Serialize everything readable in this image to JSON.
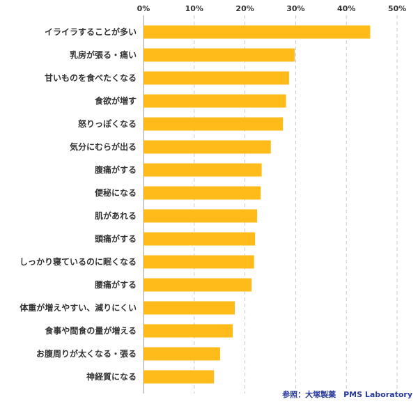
{
  "chart_data": {
    "type": "bar",
    "orientation": "horizontal",
    "categories": [
      "イライラすることが多い",
      "乳房が張る・痛い",
      "甘いものを食べたくなる",
      "食欲が増す",
      "怒りっぽくなる",
      "気分にむらが出る",
      "腹痛がする",
      "便秘になる",
      "肌があれる",
      "頭痛がする",
      "しっかり寝ているのに眠くなる",
      "腰痛がする",
      "体重が増えやすい、減りにくい",
      "食事や間食の量が増える",
      "お腹周りが太くなる・張る",
      "神経質になる"
    ],
    "values": [
      44.7,
      29.8,
      28.7,
      28.1,
      27.5,
      25.1,
      23.3,
      23.1,
      22.4,
      22.0,
      21.8,
      21.3,
      18.0,
      17.6,
      15.1,
      13.9
    ],
    "xlim": [
      0,
      50
    ],
    "xticks": [
      "0%",
      "10%",
      "20%",
      "30%",
      "40%",
      "50%"
    ],
    "grid": true,
    "bar_color": "#ffbb1a"
  },
  "source_text": "参照：大塚製薬　PMS Laboratory"
}
